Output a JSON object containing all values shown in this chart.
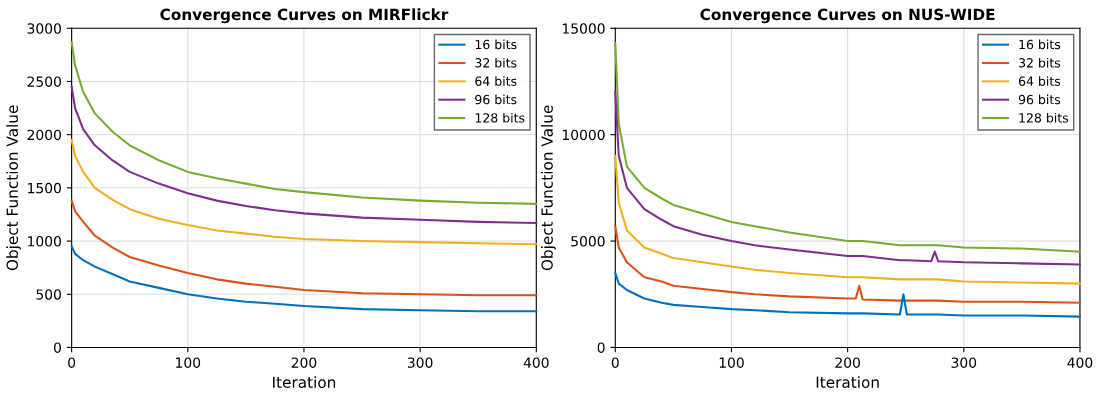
{
  "chart_data": [
    {
      "type": "line",
      "title": "Convergence Curves on MIRFlickr",
      "xlabel": "Iteration",
      "ylabel": "Object Function Value",
      "xlim": [
        0,
        400
      ],
      "xticks": [
        0,
        100,
        200,
        300,
        400
      ],
      "ylim": [
        0,
        3000
      ],
      "yticks": [
        0,
        500,
        1000,
        1500,
        2000,
        2500,
        3000
      ],
      "grid": true,
      "legend": "top right",
      "x": [
        0,
        3,
        10,
        20,
        35,
        50,
        75,
        100,
        125,
        150,
        175,
        200,
        250,
        300,
        350,
        400
      ],
      "series": [
        {
          "name": "16 bits",
          "color": "#0072bd",
          "values": [
            950,
            880,
            820,
            760,
            690,
            620,
            560,
            500,
            460,
            430,
            410,
            390,
            360,
            350,
            340,
            340
          ]
        },
        {
          "name": "32 bits",
          "color": "#d95319",
          "values": [
            1380,
            1280,
            1180,
            1050,
            940,
            850,
            770,
            700,
            640,
            600,
            570,
            540,
            510,
            500,
            490,
            490
          ]
        },
        {
          "name": "64 bits",
          "color": "#edb120",
          "values": [
            1950,
            1800,
            1650,
            1500,
            1390,
            1300,
            1210,
            1150,
            1100,
            1070,
            1040,
            1020,
            1000,
            990,
            980,
            970
          ]
        },
        {
          "name": "96 bits",
          "color": "#7e2f8e",
          "values": [
            2450,
            2250,
            2050,
            1900,
            1760,
            1650,
            1540,
            1450,
            1380,
            1330,
            1290,
            1260,
            1220,
            1200,
            1180,
            1170
          ]
        },
        {
          "name": "128 bits",
          "color": "#77ac30",
          "values": [
            2870,
            2650,
            2400,
            2200,
            2030,
            1900,
            1760,
            1650,
            1590,
            1540,
            1490,
            1460,
            1410,
            1380,
            1360,
            1350
          ]
        }
      ]
    },
    {
      "type": "line",
      "title": "Convergence Curves on NUS-WIDE",
      "xlabel": "Iteration",
      "ylabel": "Object Function Value",
      "xlim": [
        0,
        400
      ],
      "xticks": [
        0,
        100,
        200,
        300,
        400
      ],
      "ylim": [
        0,
        15000
      ],
      "yticks": [
        0,
        5000,
        10000,
        15000
      ],
      "grid": true,
      "legend": "top right",
      "x": [
        0,
        3,
        10,
        25,
        40,
        50,
        75,
        100,
        120,
        150,
        200,
        207,
        210,
        213,
        245,
        248,
        251,
        272,
        275,
        278,
        300,
        350,
        400
      ],
      "series": [
        {
          "name": "16 bits",
          "color": "#0072bd",
          "values": [
            3500,
            3000,
            2700,
            2300,
            2100,
            2000,
            1900,
            1800,
            1750,
            1650,
            1600,
            1600,
            1600,
            1600,
            1550,
            2500,
            1550,
            1550,
            1550,
            1550,
            1500,
            1500,
            1450
          ]
        },
        {
          "name": "32 bits",
          "color": "#d95319",
          "values": [
            5700,
            4700,
            4000,
            3300,
            3100,
            2900,
            2750,
            2600,
            2500,
            2400,
            2300,
            2300,
            2900,
            2250,
            2200,
            2200,
            2200,
            2200,
            2200,
            2200,
            2150,
            2150,
            2100
          ]
        },
        {
          "name": "64 bits",
          "color": "#edb120",
          "values": [
            9000,
            6800,
            5500,
            4700,
            4400,
            4200,
            4000,
            3800,
            3650,
            3500,
            3300,
            3300,
            3300,
            3300,
            3200,
            3200,
            3200,
            3200,
            3200,
            3200,
            3100,
            3050,
            3000
          ]
        },
        {
          "name": "96 bits",
          "color": "#7e2f8e",
          "values": [
            12000,
            9000,
            7500,
            6500,
            6000,
            5700,
            5300,
            5000,
            4800,
            4600,
            4300,
            4300,
            4300,
            4300,
            4100,
            4100,
            4100,
            4050,
            4500,
            4050,
            4000,
            3950,
            3900
          ]
        },
        {
          "name": "128 bits",
          "color": "#77ac30",
          "values": [
            14300,
            10500,
            8500,
            7500,
            7000,
            6700,
            6300,
            5900,
            5700,
            5400,
            5000,
            5000,
            5000,
            5000,
            4800,
            4800,
            4800,
            4800,
            4800,
            4800,
            4700,
            4650,
            4500
          ]
        }
      ]
    }
  ]
}
